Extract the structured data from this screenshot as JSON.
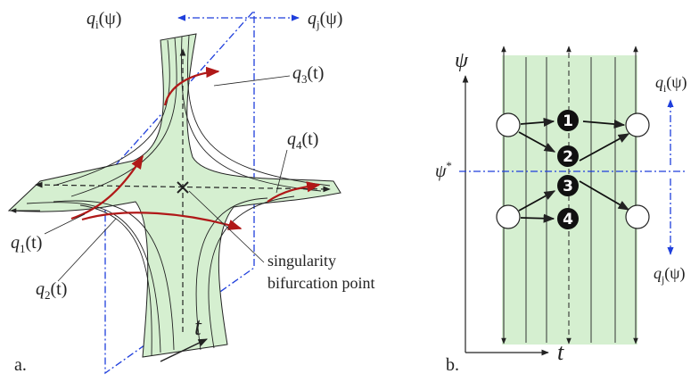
{
  "panel_a": {
    "q_i": {
      "main": "q",
      "sub": "i",
      "rest": "(ψ)"
    },
    "q_j": {
      "main": "q",
      "sub": "j",
      "rest": "(ψ)"
    },
    "q_3": {
      "main": "q",
      "sub": "3",
      "rest": "(t)"
    },
    "q_4": {
      "main": "q",
      "sub": "4",
      "rest": "(t)"
    },
    "q_1": {
      "main": "q",
      "sub": "1",
      "rest": "(t)"
    },
    "q_2": {
      "main": "q",
      "sub": "2",
      "rest": "(t)"
    },
    "note_line1": "singularity",
    "note_line2": "bifurcation point",
    "t_axis": "t",
    "label": "a."
  },
  "panel_b": {
    "psi_axis": "ψ",
    "psi_star": {
      "main": "ψ",
      "sup": "*"
    },
    "t_axis": "t",
    "q_i": {
      "main": "q",
      "sub": "i",
      "rest": "(ψ)"
    },
    "q_j": {
      "main": "q",
      "sub": "j",
      "rest": "(ψ)"
    },
    "nodes": [
      "1",
      "2",
      "3",
      "4"
    ],
    "label": "b."
  }
}
